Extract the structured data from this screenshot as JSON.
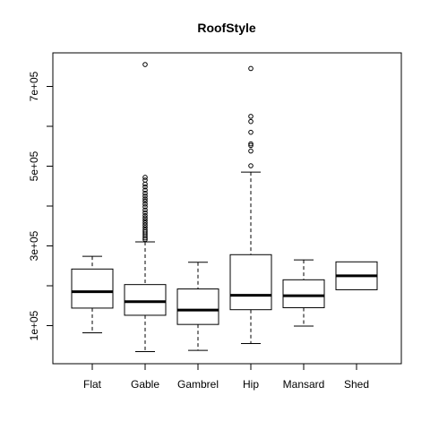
{
  "chart_data": {
    "type": "boxplot",
    "title": "RoofStyle",
    "xlabel": "",
    "ylabel": "",
    "ylim": [
      0,
      850000
    ],
    "y_ticks": [
      100000,
      300000,
      500000,
      700000
    ],
    "y_tick_labels": [
      "1e+05",
      "3e+05",
      "5e+05",
      "7e+05"
    ],
    "grid": false,
    "categories": [
      "Flat",
      "Gable",
      "Gambrel",
      "Hip",
      "Mansard",
      "Shed"
    ],
    "boxes": [
      {
        "name": "Flat",
        "whisker_low": 82000,
        "q1": 144000,
        "median": 185000,
        "q3": 242000,
        "whisker_high": 274000,
        "outliers": []
      },
      {
        "name": "Gable",
        "whisker_low": 34900,
        "q1": 126000,
        "median": 160000,
        "q3": 203000,
        "whisker_high": 310000,
        "outliers": [
          755000,
          472000,
          465000,
          455000,
          448000,
          440000,
          432000,
          425000,
          418000,
          412000,
          405000,
          398000,
          390000,
          383000,
          376000,
          370000,
          364000,
          358000,
          352000,
          346000,
          340000,
          335000,
          330000,
          325000,
          320000,
          316000
        ]
      },
      {
        "name": "Gambrel",
        "whisker_low": 38000,
        "q1": 103000,
        "median": 139000,
        "q3": 192000,
        "whisker_high": 259000,
        "outliers": []
      },
      {
        "name": "Hip",
        "whisker_low": 55000,
        "q1": 140000,
        "median": 176000,
        "q3": 278000,
        "whisker_high": 485000,
        "outliers": [
          745000,
          625000,
          612000,
          585000,
          556000,
          552000,
          538000,
          501000
        ]
      },
      {
        "name": "Mansard",
        "whisker_low": 99000,
        "q1": 145000,
        "median": 175000,
        "q3": 215000,
        "whisker_high": 265000,
        "outliers": []
      },
      {
        "name": "Shed",
        "whisker_low": 190000,
        "q1": 190000,
        "median": 225000,
        "q3": 260000,
        "whisker_high": 260000,
        "outliers": []
      }
    ]
  }
}
